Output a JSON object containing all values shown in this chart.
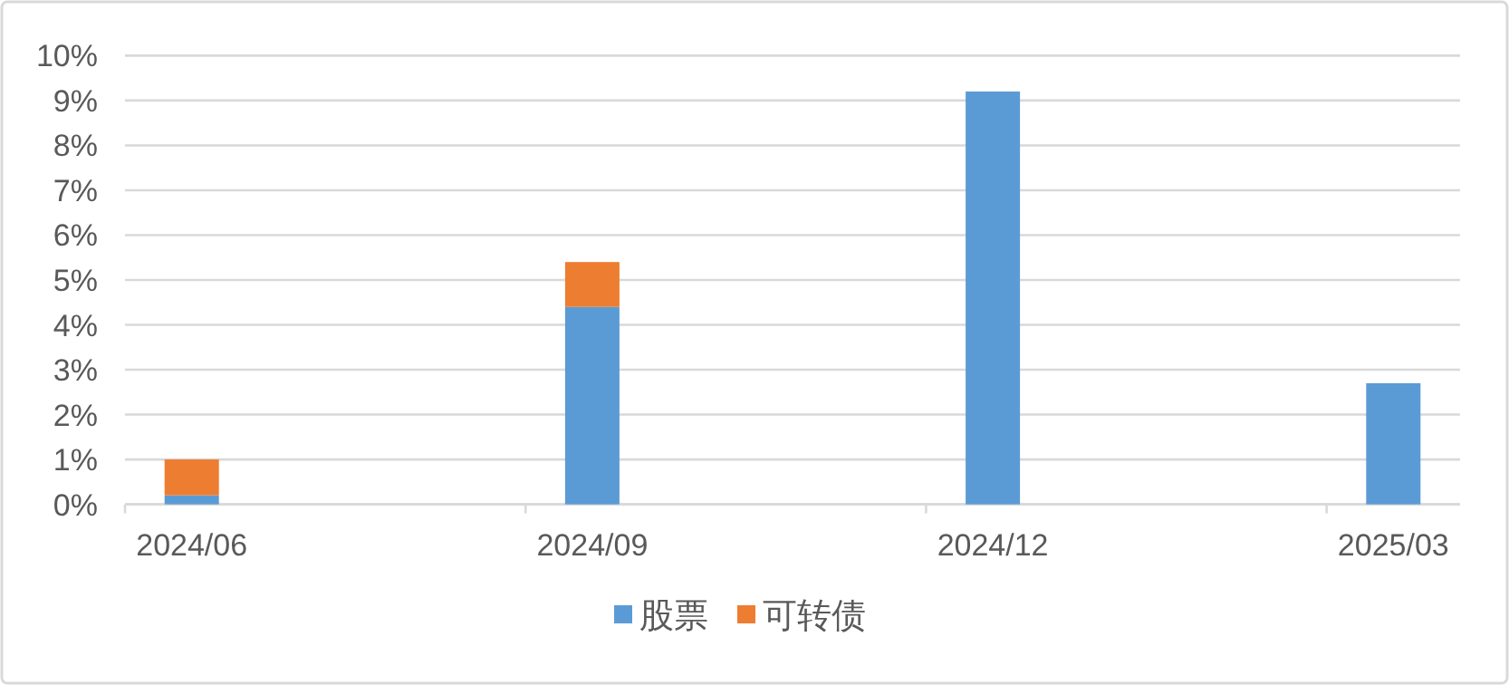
{
  "chart_data": {
    "type": "bar",
    "stacked": true,
    "categories": [
      "2024/06",
      null,
      null,
      "2024/09",
      null,
      null,
      "2024/12",
      null,
      null,
      "2025/03"
    ],
    "series": [
      {
        "name": "股票",
        "color": "#5b9bd5",
        "values": [
          0.2,
          null,
          null,
          4.4,
          null,
          null,
          9.2,
          null,
          null,
          2.7
        ]
      },
      {
        "name": "可转债",
        "color": "#ed7d31",
        "values": [
          0.8,
          null,
          null,
          1.0,
          null,
          null,
          null,
          null,
          null,
          null
        ]
      }
    ],
    "ylim": [
      0,
      10
    ],
    "yticks": [
      {
        "value": 0,
        "label": "0%"
      },
      {
        "value": 1,
        "label": "1%"
      },
      {
        "value": 2,
        "label": "2%"
      },
      {
        "value": 3,
        "label": "3%"
      },
      {
        "value": 4,
        "label": "4%"
      },
      {
        "value": 5,
        "label": "5%"
      },
      {
        "value": 6,
        "label": "6%"
      },
      {
        "value": 7,
        "label": "7%"
      },
      {
        "value": 8,
        "label": "8%"
      },
      {
        "value": 9,
        "label": "9%"
      },
      {
        "value": 10,
        "label": "10%"
      }
    ],
    "grid": "y",
    "legend": "bottom"
  }
}
